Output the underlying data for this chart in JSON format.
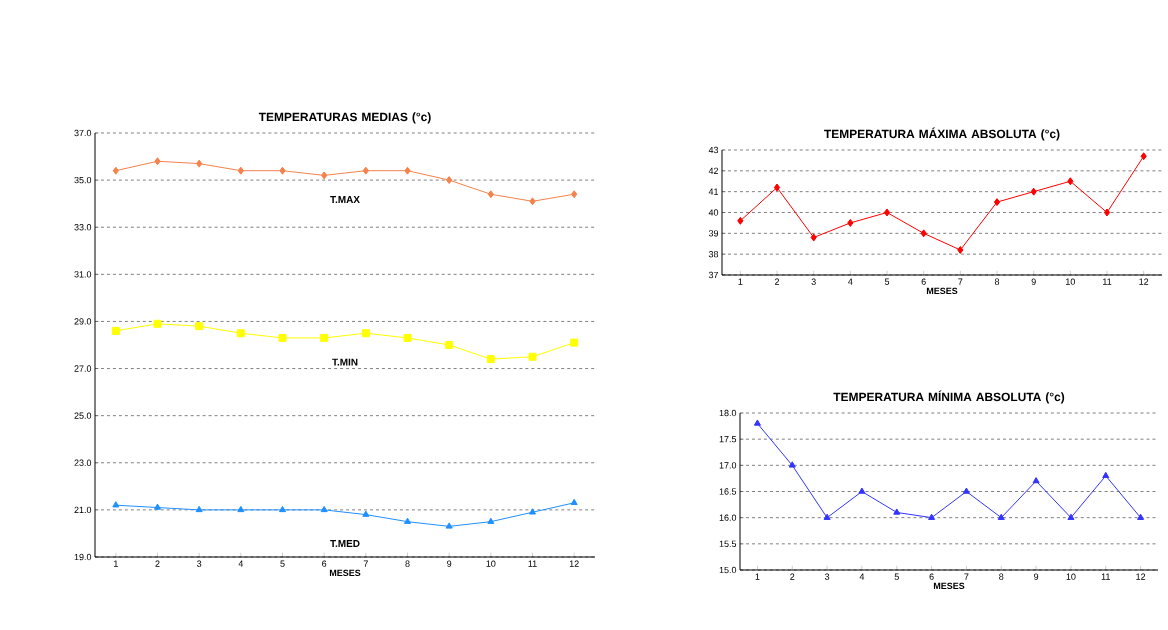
{
  "chart_data": [
    {
      "type": "line",
      "title": "TEMPERATURAS MEDIAS (°c)",
      "xlabel": "MESES",
      "categories": [
        "1",
        "2",
        "3",
        "4",
        "5",
        "6",
        "7",
        "8",
        "9",
        "10",
        "11",
        "12"
      ],
      "grid": "y",
      "ylim": [
        19,
        37
      ],
      "yticks": [
        {
          "value": 19,
          "label": "19.0"
        },
        {
          "value": 21,
          "label": "21.0"
        },
        {
          "value": 23,
          "label": "23.0"
        },
        {
          "value": 25,
          "label": "25.0"
        },
        {
          "value": 27,
          "label": "27.0"
        },
        {
          "value": 29,
          "label": "29.0"
        },
        {
          "value": 31,
          "label": "31.0"
        },
        {
          "value": 33,
          "label": "33.0"
        },
        {
          "value": 35,
          "label": "35.0"
        },
        {
          "value": 37,
          "label": "37.0"
        }
      ],
      "series": [
        {
          "name": "T.MAX",
          "color": "#f4824a",
          "marker": "diamond",
          "values": [
            35.4,
            35.8,
            35.7,
            35.4,
            35.4,
            35.2,
            35.4,
            35.4,
            35.0,
            34.4,
            34.1,
            34.4
          ]
        },
        {
          "name": "T.MIN",
          "color": "#ffff00",
          "marker": "square",
          "values": [
            28.6,
            28.9,
            28.8,
            28.5,
            28.3,
            28.3,
            28.5,
            28.3,
            28.0,
            27.4,
            27.5,
            28.1
          ]
        },
        {
          "name": "T.MED",
          "color": "#1e90ff",
          "marker": "triangle",
          "values": [
            21.2,
            21.1,
            21.0,
            21.0,
            21.0,
            21.0,
            20.8,
            20.5,
            20.3,
            20.5,
            20.9,
            21.3
          ]
        }
      ]
    },
    {
      "type": "line",
      "title": "TEMPERATURA MÁXIMA ABSOLUTA (°c)",
      "xlabel": "MESES",
      "categories": [
        "1",
        "2",
        "3",
        "4",
        "5",
        "6",
        "7",
        "8",
        "9",
        "10",
        "11",
        "12"
      ],
      "grid": "y",
      "marker": "diamond",
      "ylim": [
        37,
        43
      ],
      "yticks": [
        37,
        38,
        39,
        40,
        41,
        42,
        43
      ],
      "series": [
        {
          "color": "#ff0000",
          "values": [
            39.6,
            41.2,
            38.8,
            39.5,
            40.0,
            39.0,
            38.2,
            40.5,
            41.0,
            41.5,
            40.0,
            42.7
          ]
        }
      ]
    },
    {
      "type": "line",
      "title": "TEMPERATURA MÍNIMA ABSOLUTA (°c)",
      "xlabel": "MESES",
      "categories": [
        "1",
        "2",
        "3",
        "4",
        "5",
        "6",
        "7",
        "8",
        "9",
        "10",
        "11",
        "12"
      ],
      "grid": "y",
      "marker": "triangle",
      "ylim": [
        15,
        18
      ],
      "yticks": [
        {
          "value": 15,
          "label": "15.0"
        },
        {
          "value": 15.5,
          "label": "15.5"
        },
        {
          "value": 16,
          "label": "16.0"
        },
        {
          "value": 16.5,
          "label": "16.5"
        },
        {
          "value": 17,
          "label": "17.0"
        },
        {
          "value": 17.5,
          "label": "17.5"
        },
        {
          "value": 18,
          "label": "18.0"
        }
      ],
      "series": [
        {
          "color": "#3333ff",
          "values": [
            17.8,
            17.0,
            16.0,
            16.5,
            16.1,
            16.0,
            16.5,
            16.0,
            16.7,
            16.0,
            16.8,
            16.0
          ]
        }
      ]
    }
  ]
}
